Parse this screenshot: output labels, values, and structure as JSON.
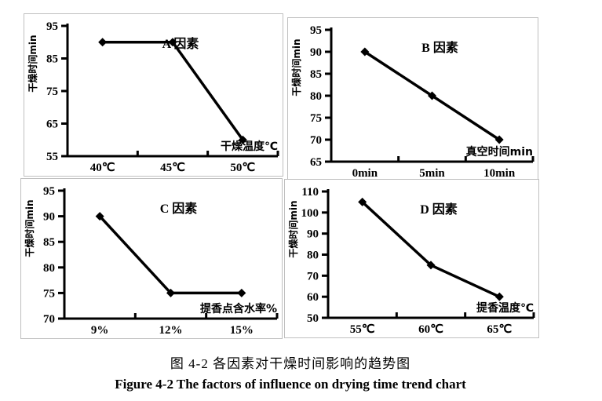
{
  "figure": {
    "caption_zh": "图 4-2 各因素对干燥时间影响的趋势图",
    "caption_en": "Figure 4-2 The factors of influence on drying time trend chart"
  },
  "colors": {
    "ink": "#000000",
    "panel_border": "#bfbfbf",
    "background": "#ffffff"
  },
  "chart_data": [
    {
      "type": "line",
      "title": "A 因素",
      "categories": [
        "40℃",
        "45℃",
        "50℃"
      ],
      "values": [
        90,
        90,
        60
      ],
      "xlabel": "干燥温度℃",
      "ylabel": "干燥时间min",
      "ylim": [
        55,
        95
      ],
      "ytick_step": 10,
      "grid": false,
      "legend": "none",
      "marker": "diamond"
    },
    {
      "type": "line",
      "title": "B 因素",
      "categories": [
        "0min",
        "5min",
        "10min"
      ],
      "values": [
        90,
        80,
        70
      ],
      "xlabel": "真空时间min",
      "ylabel": "干燥时间min",
      "ylim": [
        65,
        95
      ],
      "ytick_step": 5,
      "grid": false,
      "legend": "none",
      "marker": "diamond"
    },
    {
      "type": "line",
      "title": "C 因素",
      "categories": [
        "9%",
        "12%",
        "15%"
      ],
      "values": [
        90,
        75,
        75
      ],
      "xlabel": "提香点含水率%",
      "ylabel": "干燥时间min",
      "ylim": [
        70,
        95
      ],
      "ytick_step": 5,
      "grid": false,
      "legend": "none",
      "marker": "diamond"
    },
    {
      "type": "line",
      "title": "D 因素",
      "categories": [
        "55℃",
        "60℃",
        "65℃"
      ],
      "values": [
        105,
        75,
        60
      ],
      "xlabel": "提香温度℃",
      "ylabel": "干燥时间min",
      "ylim": [
        50,
        110
      ],
      "ytick_step": 10,
      "grid": false,
      "legend": "none",
      "marker": "diamond"
    }
  ]
}
